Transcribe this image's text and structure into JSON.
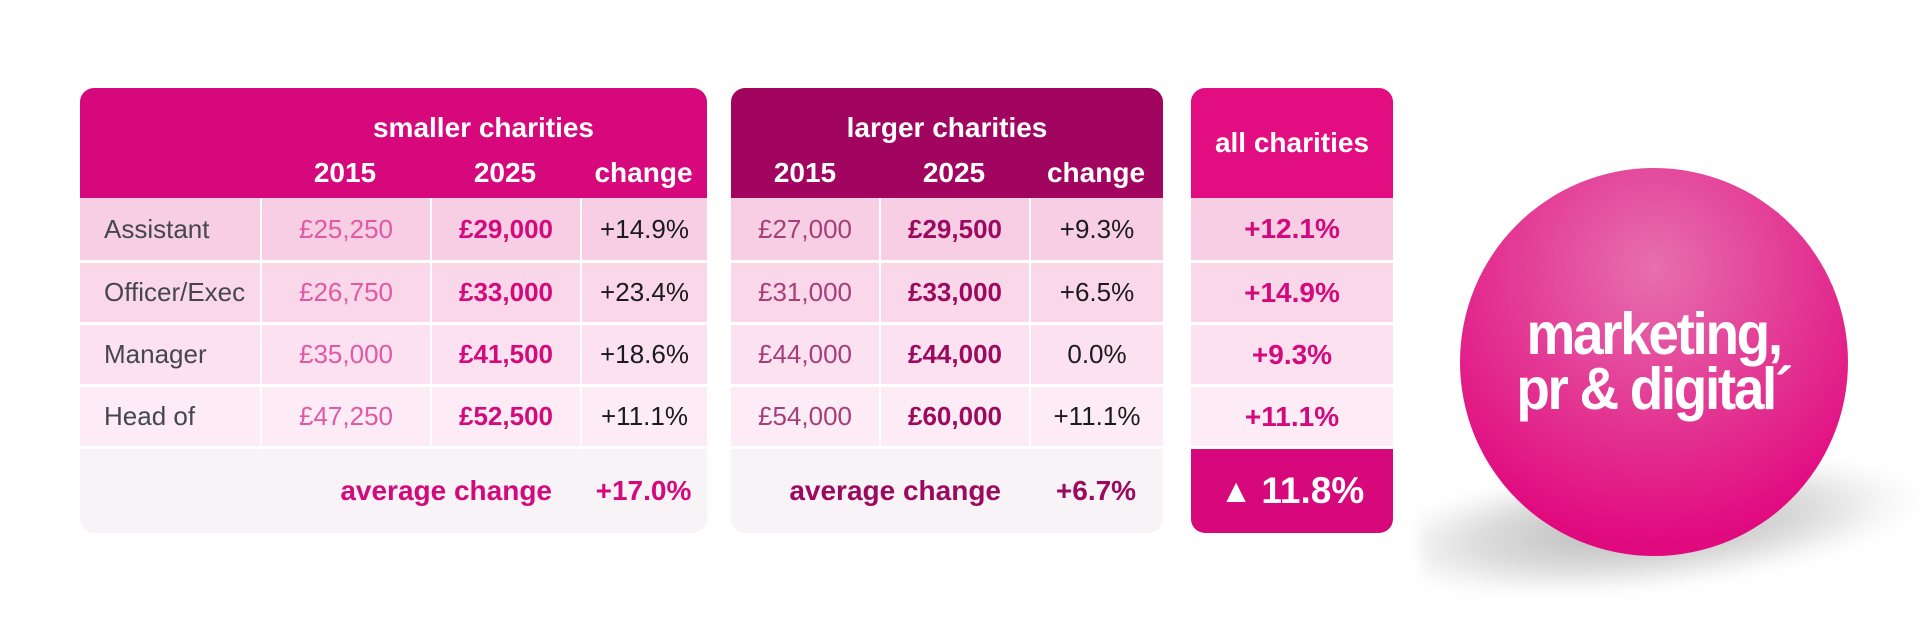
{
  "brand": {
    "bright_pink": "#d6087c",
    "dark_magenta": "#a10560",
    "header_pink": "#e20d80",
    "row_pinks": [
      "#f8cee4",
      "#fad8ea",
      "#fce2f0",
      "#fdecf5"
    ]
  },
  "smaller_table": {
    "title": "smaller charities",
    "columns": {
      "y2015": "2015",
      "y2025": "2025",
      "change": "change"
    },
    "rows": [
      {
        "label": "Assistant",
        "v2015": "£25,250",
        "v2025": "£29,000",
        "change": "+14.9%"
      },
      {
        "label": "Officer/Exec",
        "v2015": "£26,750",
        "v2025": "£33,000",
        "change": "+23.4%"
      },
      {
        "label": "Manager",
        "v2015": "£35,000",
        "v2025": "£41,500",
        "change": "+18.6%"
      },
      {
        "label": "Head of",
        "v2015": "£47,250",
        "v2025": "£52,500",
        "change": "+11.1%"
      }
    ],
    "footer": {
      "label": "average change",
      "value": "+17.0%"
    }
  },
  "larger_table": {
    "title": "larger charities",
    "columns": {
      "y2015": "2015",
      "y2025": "2025",
      "change": "change"
    },
    "rows": [
      {
        "v2015": "£27,000",
        "v2025": "£29,500",
        "change": "+9.3%"
      },
      {
        "v2015": "£31,000",
        "v2025": "£33,000",
        "change": "+6.5%"
      },
      {
        "v2015": "£44,000",
        "v2025": "£44,000",
        "change": "0.0%"
      },
      {
        "v2015": "£54,000",
        "v2025": "£60,000",
        "change": "+11.1%"
      }
    ],
    "footer": {
      "label": "average change",
      "value": "+6.7%"
    }
  },
  "all_table": {
    "title": "all charities",
    "values": [
      "+12.1%",
      "+14.9%",
      "+9.3%",
      "+11.1%"
    ],
    "footer_icon": "▲",
    "footer_value": "11.8%"
  },
  "logo": {
    "line1": "marketing,",
    "line2": "pr & digital´"
  },
  "chart_data": {
    "type": "table",
    "row_labels": [
      "Assistant",
      "Officer/Exec",
      "Manager",
      "Head of"
    ],
    "years": [
      "2015",
      "2025"
    ],
    "groups": [
      {
        "name": "smaller charities",
        "salaries_2015": [
          25250,
          26750,
          35000,
          47250
        ],
        "salaries_2025": [
          29000,
          33000,
          41500,
          52500
        ],
        "change_pct": [
          14.9,
          23.4,
          18.6,
          11.1
        ],
        "average_change_pct": 17.0
      },
      {
        "name": "larger charities",
        "salaries_2015": [
          27000,
          31000,
          44000,
          54000
        ],
        "salaries_2025": [
          29500,
          33000,
          44000,
          60000
        ],
        "change_pct": [
          9.3,
          6.5,
          0.0,
          11.1
        ],
        "average_change_pct": 6.7
      },
      {
        "name": "all charities",
        "change_pct": [
          12.1,
          14.9,
          9.3,
          11.1
        ],
        "average_change_pct": 11.8
      }
    ]
  }
}
